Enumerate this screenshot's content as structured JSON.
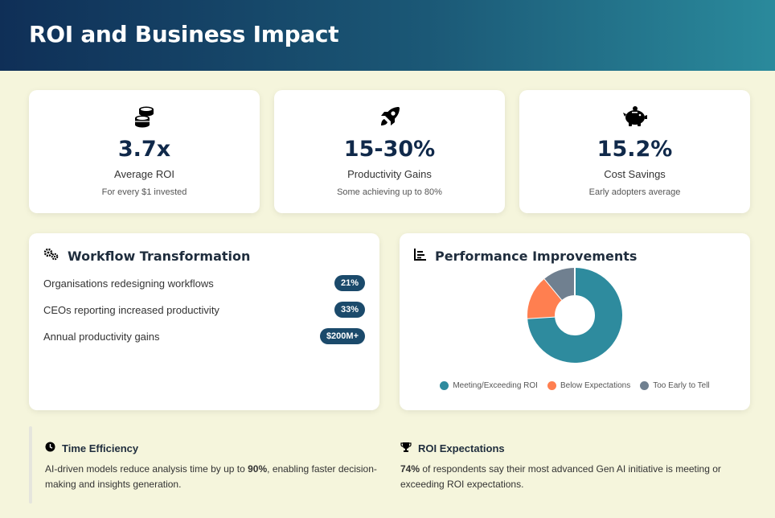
{
  "header": {
    "title": "ROI and Business Impact"
  },
  "stats": [
    {
      "icon": "coins-icon",
      "value": "3.7x",
      "label": "Average ROI",
      "sub": "For every $1 invested"
    },
    {
      "icon": "rocket-icon",
      "value": "15-30%",
      "label": "Productivity Gains",
      "sub": "Some achieving up to 80%"
    },
    {
      "icon": "piggy-bank-icon",
      "value": "15.2%",
      "label": "Cost Savings",
      "sub": "Early adopters average"
    }
  ],
  "workflow": {
    "title": "Workflow Transformation",
    "icon": "gears-icon",
    "rows": [
      {
        "text": "Organisations redesigning workflows",
        "badge": "21%"
      },
      {
        "text": "CEOs reporting increased productivity",
        "badge": "33%"
      },
      {
        "text": "Annual productivity gains",
        "badge": "$200M+"
      }
    ]
  },
  "performance": {
    "title": "Performance Improvements",
    "icon": "chart-line-icon"
  },
  "chart_data": {
    "type": "pie",
    "donut": true,
    "categories": [
      "Meeting/Exceeding ROI",
      "Below Expectations",
      "Too Early to Tell"
    ],
    "values": [
      74,
      15,
      11
    ],
    "colors": [
      "#2e8b9e",
      "#ff7f50",
      "#708090"
    ],
    "legend": "bottom"
  },
  "notes": {
    "time": {
      "title": "Time Efficiency",
      "icon": "clock-icon",
      "pre": "AI-driven models reduce analysis time by up to ",
      "bold": "90%",
      "post": ", enabling faster decision-making and insights generation."
    },
    "roi": {
      "title": "ROI Expectations",
      "icon": "trophy-icon",
      "bold": "74%",
      "post": " of respondents say their most advanced Gen AI initiative is meeting or exceeding ROI expectations."
    }
  }
}
